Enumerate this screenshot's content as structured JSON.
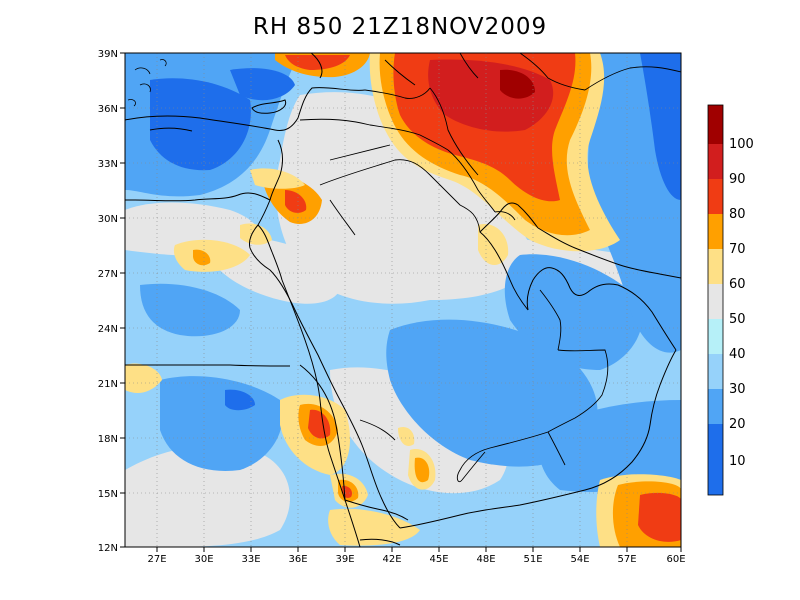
{
  "title": "RH 850 21Z18NOV2009",
  "lat_labels": [
    "39N",
    "36N",
    "33N",
    "30N",
    "27N",
    "24N",
    "21N",
    "18N",
    "15N",
    "12N"
  ],
  "lon_labels": [
    "27E",
    "30E",
    "33E",
    "36E",
    "39E",
    "42E",
    "45E",
    "48E",
    "51E",
    "54E",
    "57E",
    "60E"
  ],
  "colorbar": {
    "labels": [
      "100",
      "90",
      "80",
      "70",
      "60",
      "50",
      "40",
      "30",
      "20",
      "10"
    ],
    "colors": [
      "#a00000",
      "#d21e1e",
      "#f03c14",
      "#ffa000",
      "#fee086",
      "#e6e6e6",
      "#b6f0f8",
      "#96d2fa",
      "#50a5f5",
      "#1e6eeb"
    ]
  },
  "field_colors": {
    "deep_blue": "#1e6eeb",
    "blue": "#50a5f5",
    "light_blue": "#96d2fa",
    "pale_blue": "#b6f0f8",
    "grey": "#e6e6e6",
    "yellow": "#fee086",
    "orange": "#ffa000",
    "red_orange": "#f03c14",
    "red": "#d21e1e",
    "dark_red": "#a00000"
  }
}
